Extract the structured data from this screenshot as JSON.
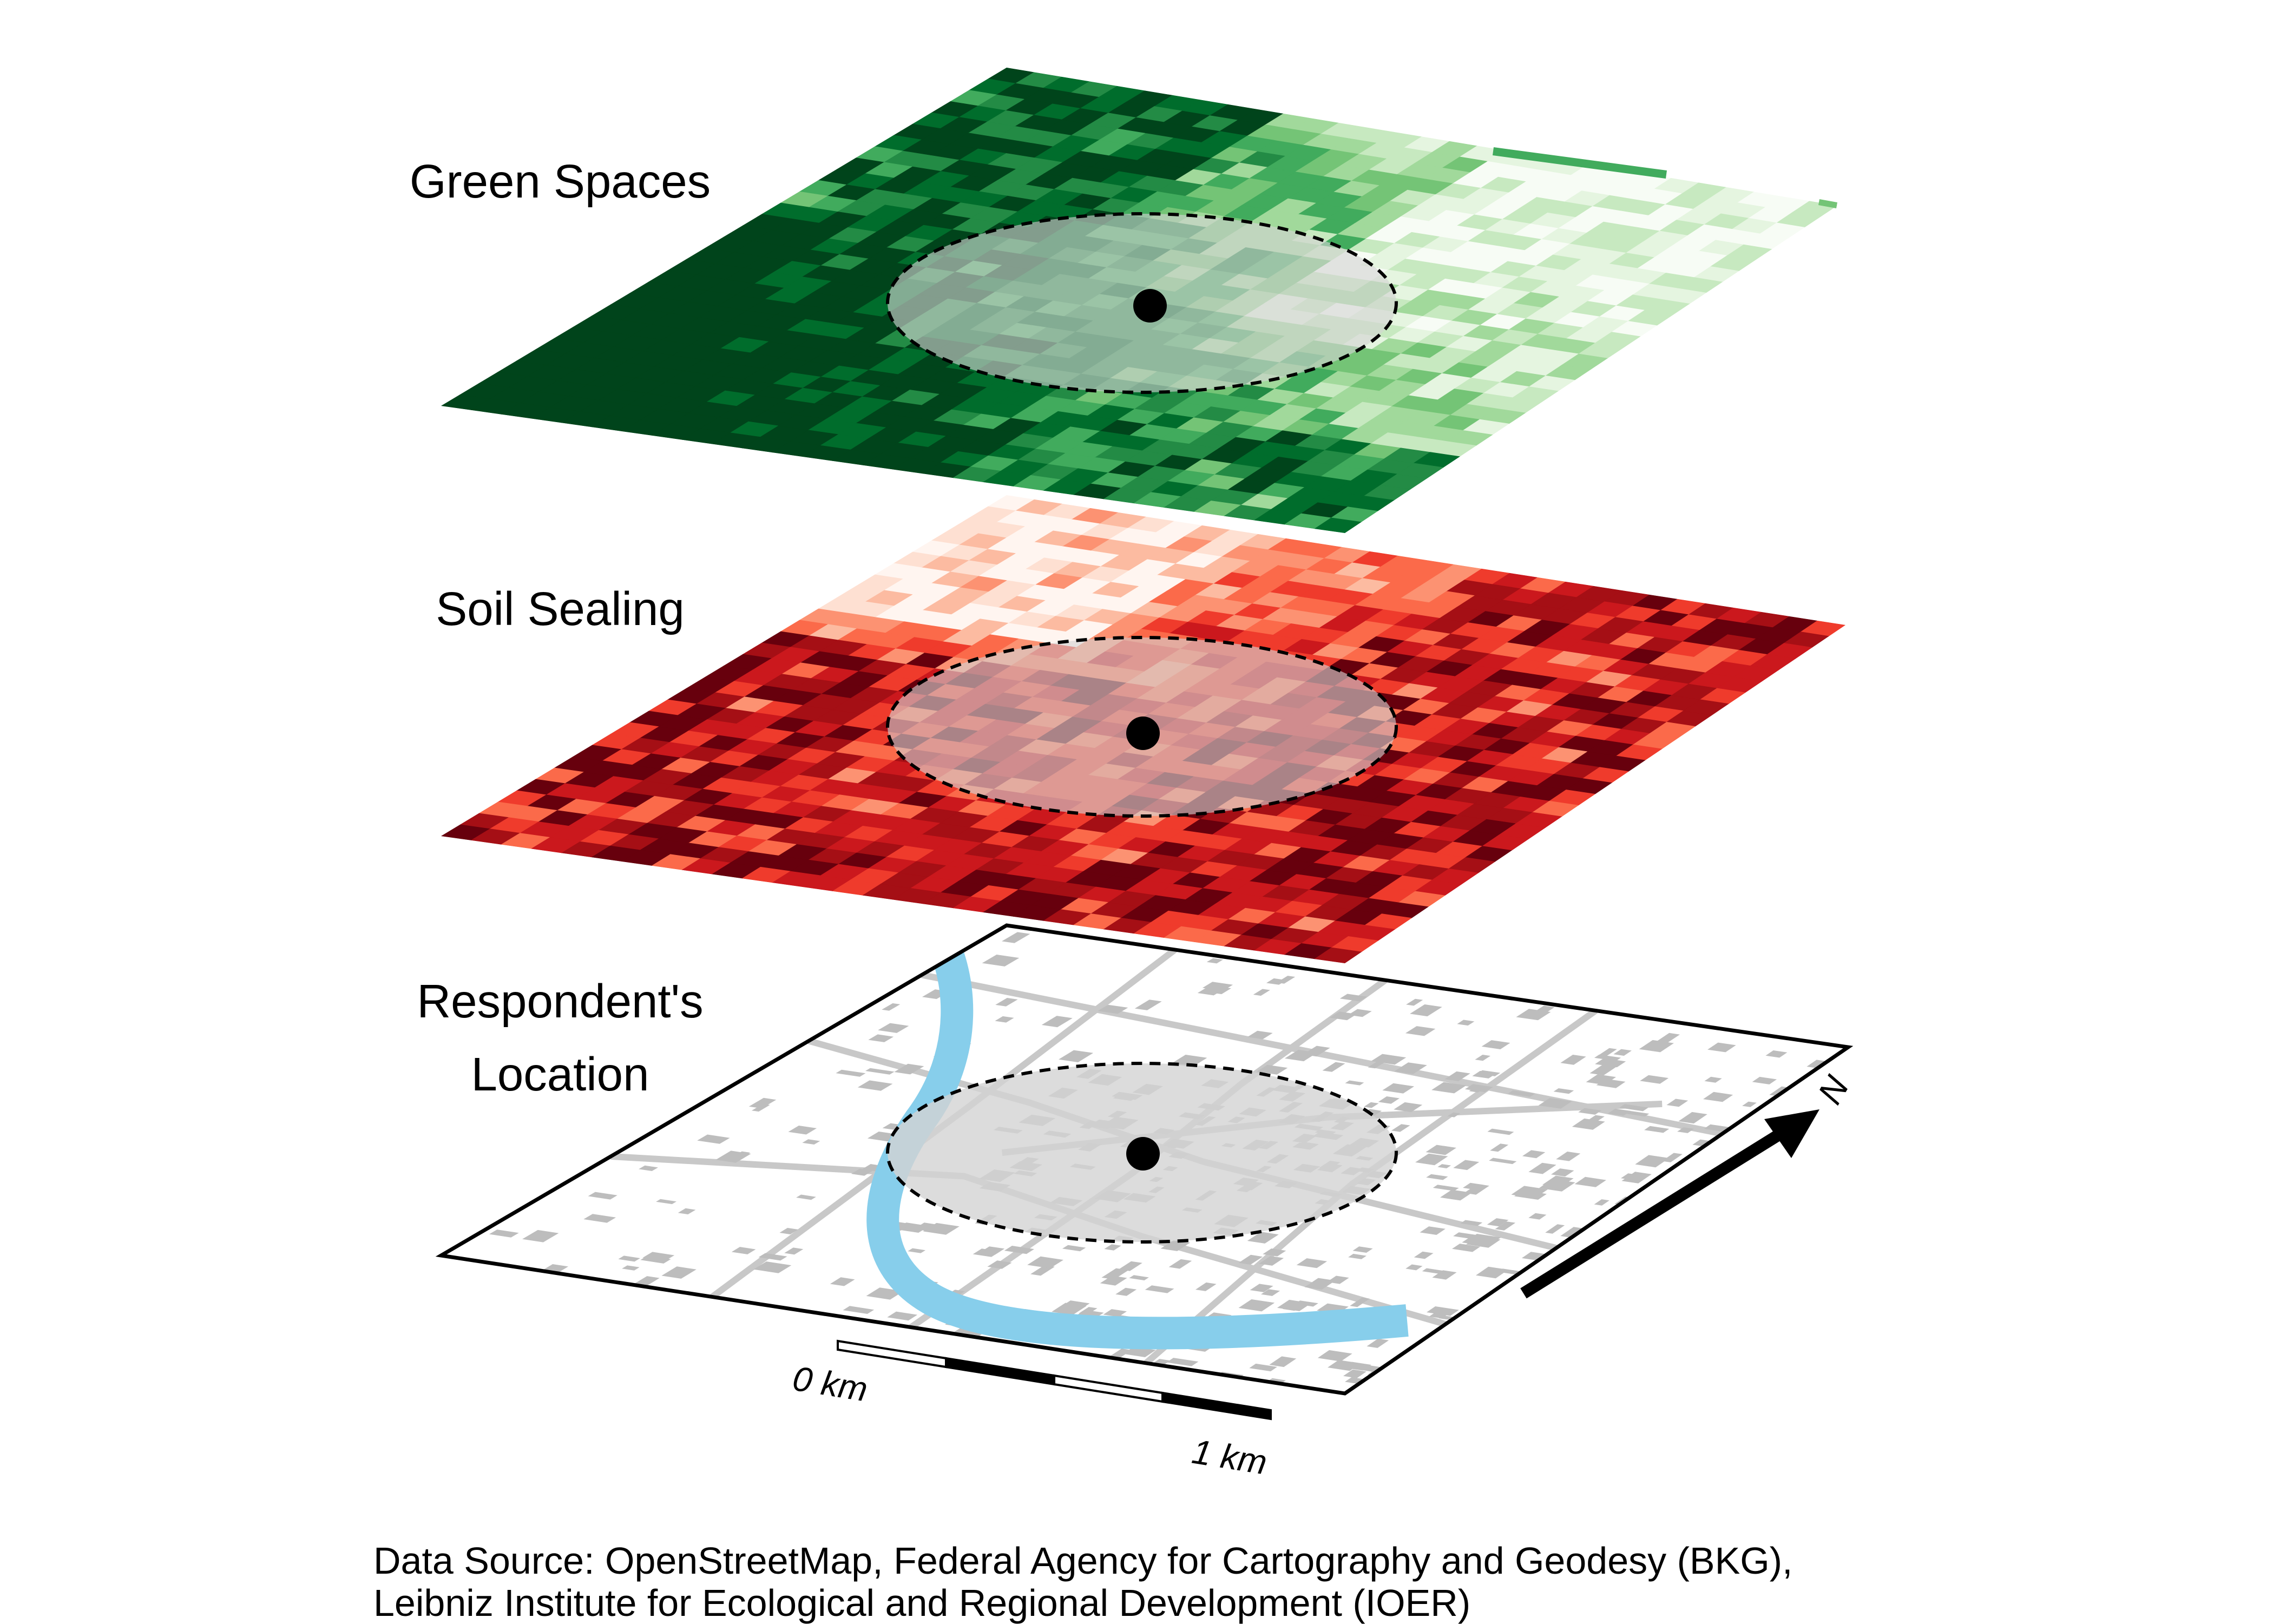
{
  "layers": [
    {
      "id": "green",
      "label": "Green Spaces",
      "palette": "Greens"
    },
    {
      "id": "sealing",
      "label": "Soil Sealing",
      "palette": "Reds"
    },
    {
      "id": "location",
      "label_lines": [
        "Respondent's",
        "Location"
      ]
    }
  ],
  "colors": {
    "greens": [
      "#f7fcf5",
      "#e5f5e0",
      "#c7e9c0",
      "#a1d99b",
      "#74c476",
      "#41ab5d",
      "#238b45",
      "#006d2c",
      "#00441b"
    ],
    "reds": [
      "#fff5f0",
      "#fee0d2",
      "#fcbba1",
      "#fc9272",
      "#fb6a4a",
      "#ef3b2c",
      "#cb181d",
      "#a50f15",
      "#67000d"
    ],
    "river": "#87ceeb",
    "buildings": "#bdbdbd",
    "roads": "#c8c8c8",
    "buffer": "#d3d3d3",
    "point": "#000000"
  },
  "scale_bar": {
    "start_label": "0 km",
    "end_label": "1 km"
  },
  "north_arrow": {
    "label": "N"
  },
  "caption": {
    "line1": "Data Source: OpenStreetMap, Federal Agency for Cartography and Geodesy (BKG),",
    "line2": "Leibniz Institute for Ecological and Regional Development (IOER)"
  }
}
